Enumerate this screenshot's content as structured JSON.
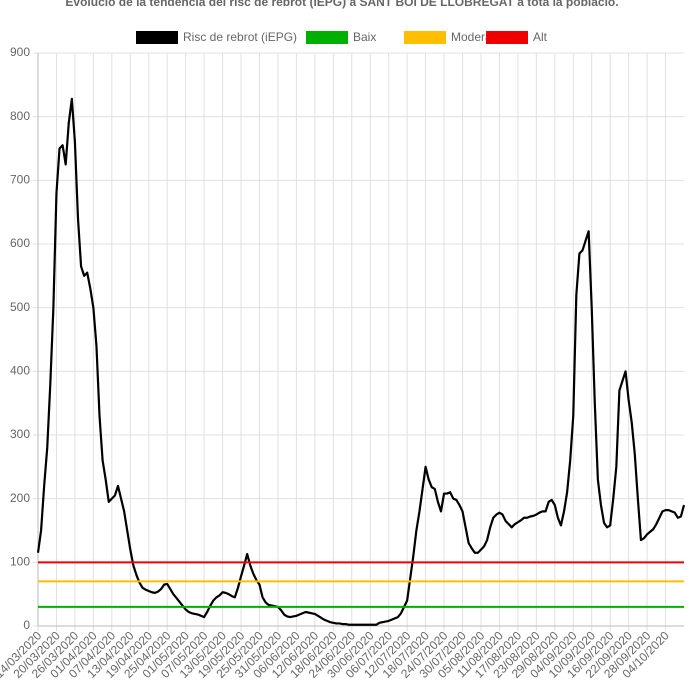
{
  "chart_data": {
    "type": "line",
    "title": "Evolució de la tendència del risc de rebrot (iEPG) a SANT BOI DE LLOBREGAT a tota la població.",
    "categories": [
      "14/03/2020",
      null,
      null,
      null,
      null,
      null,
      "20/03/2020",
      null,
      null,
      null,
      null,
      null,
      "26/03/2020",
      null,
      null,
      null,
      null,
      null,
      "01/04/2020",
      null,
      null,
      null,
      null,
      null,
      "07/04/2020",
      null,
      null,
      null,
      null,
      null,
      "13/04/2020",
      null,
      null,
      null,
      null,
      null,
      "19/04/2020",
      null,
      null,
      null,
      null,
      null,
      "25/04/2020",
      null,
      null,
      null,
      null,
      null,
      "01/05/2020",
      null,
      null,
      null,
      null,
      null,
      "07/05/2020",
      null,
      null,
      null,
      null,
      null,
      "13/05/2020",
      null,
      null,
      null,
      null,
      null,
      "19/05/2020",
      null,
      null,
      null,
      null,
      null,
      "25/05/2020",
      null,
      null,
      null,
      null,
      null,
      "31/05/2020",
      null,
      null,
      null,
      null,
      null,
      "06/06/2020",
      null,
      null,
      null,
      null,
      null,
      "12/06/2020",
      null,
      null,
      null,
      null,
      null,
      "18/06/2020",
      null,
      null,
      null,
      null,
      null,
      "24/06/2020",
      null,
      null,
      null,
      null,
      null,
      "30/06/2020",
      null,
      null,
      null,
      null,
      null,
      "06/07/2020",
      null,
      null,
      null,
      null,
      null,
      "12/07/2020",
      null,
      null,
      null,
      null,
      null,
      "18/07/2020",
      null,
      null,
      null,
      null,
      null,
      "24/07/2020",
      null,
      null,
      null,
      null,
      null,
      "30/07/2020",
      null,
      null,
      null,
      null,
      null,
      "05/08/2020",
      null,
      null,
      null,
      null,
      null,
      "11/08/2020",
      null,
      null,
      null,
      null,
      null,
      "17/08/2020",
      null,
      null,
      null,
      null,
      null,
      "23/08/2020",
      null,
      null,
      null,
      null,
      null,
      "29/08/2020",
      null,
      null,
      null,
      null,
      null,
      "04/09/2020",
      null,
      null,
      null,
      null,
      null,
      "10/09/2020",
      null,
      null,
      null,
      null,
      null,
      "16/09/2020",
      null,
      null,
      null,
      null,
      null,
      "22/09/2020",
      null,
      null,
      null,
      null,
      null,
      "28/09/2020",
      null,
      null,
      null,
      null,
      null,
      "04/10/2020",
      null,
      null,
      null,
      null,
      null,
      null
    ],
    "series": [
      {
        "name": "Risc de rebrot (iEPG)",
        "color": "#000000",
        "values": [
          115,
          150,
          220,
          280,
          380,
          500,
          680,
          750,
          755,
          725,
          790,
          828,
          760,
          640,
          565,
          550,
          555,
          530,
          500,
          440,
          330,
          260,
          230,
          195,
          200,
          205,
          220,
          200,
          180,
          150,
          120,
          95,
          80,
          68,
          60,
          57,
          55,
          53,
          52,
          54,
          58,
          65,
          66,
          58,
          50,
          44,
          38,
          32,
          26,
          22,
          20,
          19,
          18,
          16,
          14,
          22,
          32,
          40,
          45,
          48,
          53,
          52,
          50,
          47,
          45,
          60,
          78,
          95,
          113,
          95,
          82,
          72,
          65,
          45,
          37,
          33,
          32,
          31,
          30,
          25,
          18,
          15,
          14,
          15,
          16,
          18,
          20,
          22,
          21,
          20,
          19,
          16,
          13,
          10,
          8,
          6,
          5,
          4,
          4,
          3,
          3,
          2,
          2,
          2,
          2,
          2,
          2,
          2,
          2,
          2,
          2,
          5,
          6,
          7,
          8,
          10,
          12,
          14,
          20,
          30,
          40,
          75,
          110,
          150,
          180,
          215,
          250,
          230,
          218,
          215,
          195,
          180,
          208,
          208,
          210,
          200,
          198,
          190,
          180,
          155,
          130,
          122,
          115,
          115,
          120,
          125,
          135,
          155,
          170,
          175,
          178,
          175,
          165,
          160,
          155,
          160,
          163,
          166,
          170,
          170,
          172,
          173,
          175,
          178,
          180,
          180,
          195,
          198,
          190,
          170,
          158,
          180,
          210,
          260,
          330,
          520,
          585,
          590,
          605,
          620,
          500,
          350,
          230,
          190,
          162,
          155,
          158,
          200,
          250,
          370,
          385,
          400,
          355,
          320,
          270,
          200,
          135,
          138,
          144,
          148,
          152,
          160,
          170,
          180,
          182,
          182,
          180,
          178,
          170,
          172,
          190
        ]
      },
      {
        "name": "Baix",
        "color": "#00b000",
        "value": 30
      },
      {
        "name": "Moderat",
        "color": "#ffbf00",
        "value": 70
      },
      {
        "name": "Alt",
        "color": "#ee0000",
        "value": 100
      }
    ],
    "ylim": [
      0,
      900
    ],
    "yticks": [
      0,
      100,
      200,
      300,
      400,
      500,
      600,
      700,
      800,
      900
    ],
    "grid": true
  }
}
